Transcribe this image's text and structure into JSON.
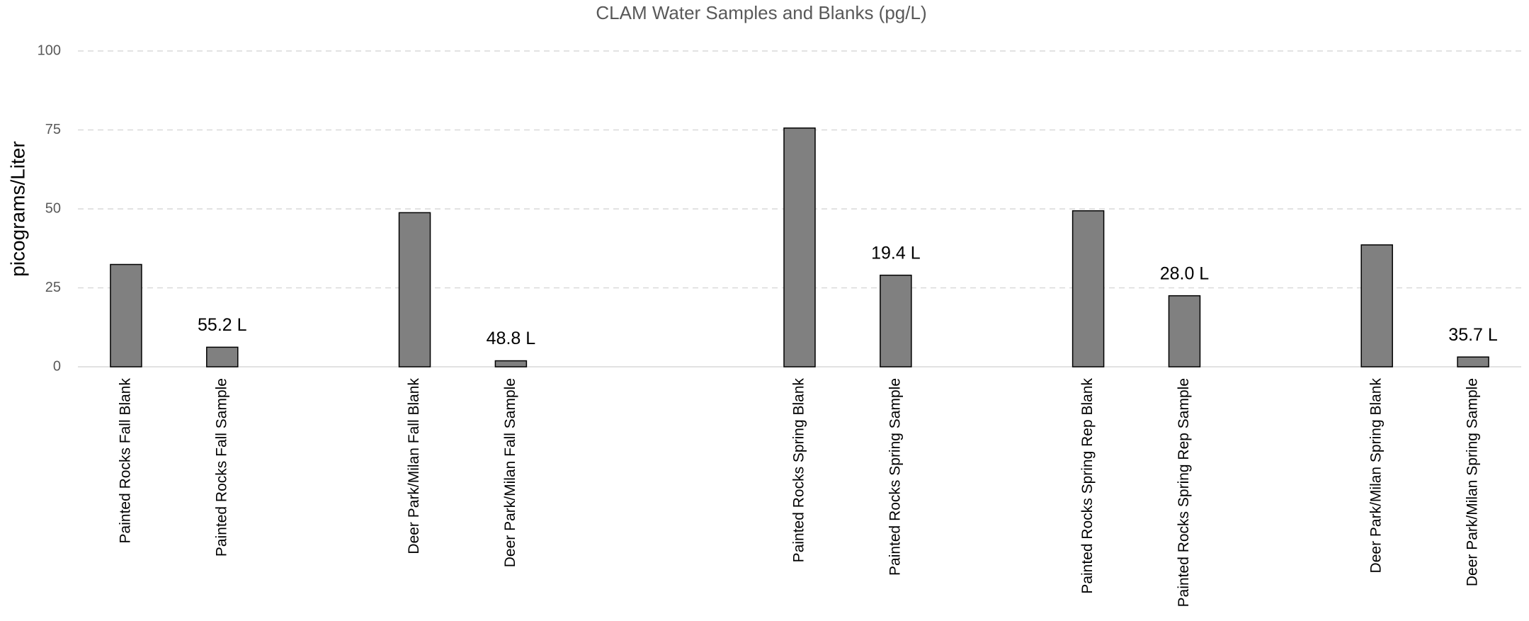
{
  "chart_data": {
    "type": "bar",
    "title": "CLAM Water Samples and Blanks (pg/L)",
    "y_label": "picograms/Liter",
    "categories": [
      "Painted Rocks Fall Blank",
      "Painted Rocks Fall Sample",
      null,
      "Deer Park/Milan Fall Blank",
      "Deer Park/Milan Fall Sample",
      null,
      null,
      "Painted Rocks Spring Blank",
      "Painted Rocks Spring Sample",
      null,
      "Painted Rocks Spring Rep Blank",
      "Painted Rocks Spring Rep Sample",
      null,
      "Deer Park/Milan Spring Blank",
      "Deer Park/Milan Spring Sample"
    ],
    "values": [
      32.4,
      6.2,
      null,
      48.8,
      1.9,
      null,
      null,
      75.6,
      29.0,
      null,
      49.4,
      22.5,
      null,
      38.6,
      3.1
    ],
    "annotations": [
      null,
      "55.2 L",
      null,
      null,
      "48.8 L",
      null,
      null,
      null,
      "19.4 L",
      null,
      null,
      "28.0 L",
      null,
      null,
      "35.7 L"
    ],
    "color": "#808080",
    "ylim": [
      0,
      100
    ],
    "yticks": [
      0,
      25,
      50,
      75,
      100
    ],
    "grid": true
  }
}
